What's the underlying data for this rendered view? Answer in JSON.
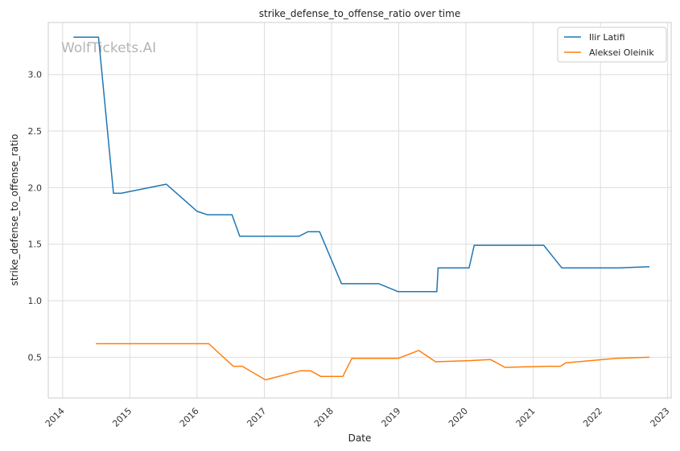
{
  "chart_data": {
    "type": "line",
    "title": "strike_defense_to_offense_ratio over time",
    "xlabel": "Date",
    "ylabel": "strike_defense_to_offense_ratio",
    "watermark": "WolfTickets.AI",
    "xlim": [
      "2013-10-15",
      "2023-01-20"
    ],
    "ylim": [
      0.14,
      3.46
    ],
    "x_ticks": [
      "2014",
      "2015",
      "2016",
      "2017",
      "2018",
      "2019",
      "2020",
      "2021",
      "2022",
      "2023"
    ],
    "y_ticks": [
      "0.5",
      "1.0",
      "1.5",
      "2.0",
      "2.5",
      "3.0"
    ],
    "grid": true,
    "legend_position": "top-right",
    "series": [
      {
        "name": "Ilir Latifi",
        "color": "#1f77b4",
        "points": [
          [
            "2014-03-01",
            3.33
          ],
          [
            "2014-07-15",
            3.33
          ],
          [
            "2014-10-04",
            1.95
          ],
          [
            "2014-11-15",
            1.95
          ],
          [
            "2015-07-18",
            2.03
          ],
          [
            "2016-01-02",
            1.79
          ],
          [
            "2016-02-27",
            1.76
          ],
          [
            "2016-07-09",
            1.76
          ],
          [
            "2016-08-20",
            1.57
          ],
          [
            "2017-07-08",
            1.57
          ],
          [
            "2017-08-26",
            1.61
          ],
          [
            "2017-10-28",
            1.61
          ],
          [
            "2018-02-24",
            1.15
          ],
          [
            "2018-09-15",
            1.15
          ],
          [
            "2018-12-29",
            1.08
          ],
          [
            "2019-07-27",
            1.08
          ],
          [
            "2019-08-03",
            1.29
          ],
          [
            "2020-01-18",
            1.29
          ],
          [
            "2020-02-15",
            1.49
          ],
          [
            "2021-02-27",
            1.49
          ],
          [
            "2021-06-05",
            1.29
          ],
          [
            "2022-04-09",
            1.29
          ],
          [
            "2022-09-24",
            1.3
          ]
        ]
      },
      {
        "name": "Aleksei Oleinik",
        "color": "#ff7f0e",
        "points": [
          [
            "2014-07-01",
            0.62
          ],
          [
            "2016-03-05",
            0.62
          ],
          [
            "2016-07-16",
            0.42
          ],
          [
            "2016-09-03",
            0.42
          ],
          [
            "2017-01-07",
            0.3
          ],
          [
            "2017-07-16",
            0.38
          ],
          [
            "2017-09-09",
            0.38
          ],
          [
            "2017-11-04",
            0.33
          ],
          [
            "2018-03-03",
            0.33
          ],
          [
            "2018-04-21",
            0.49
          ],
          [
            "2018-12-29",
            0.49
          ],
          [
            "2019-04-20",
            0.56
          ],
          [
            "2019-07-20",
            0.46
          ],
          [
            "2020-01-18",
            0.47
          ],
          [
            "2020-05-13",
            0.48
          ],
          [
            "2020-08-01",
            0.41
          ],
          [
            "2021-03-20",
            0.42
          ],
          [
            "2021-05-29",
            0.42
          ],
          [
            "2021-06-26",
            0.45
          ],
          [
            "2022-03-26",
            0.49
          ],
          [
            "2022-09-24",
            0.5
          ]
        ]
      }
    ]
  }
}
